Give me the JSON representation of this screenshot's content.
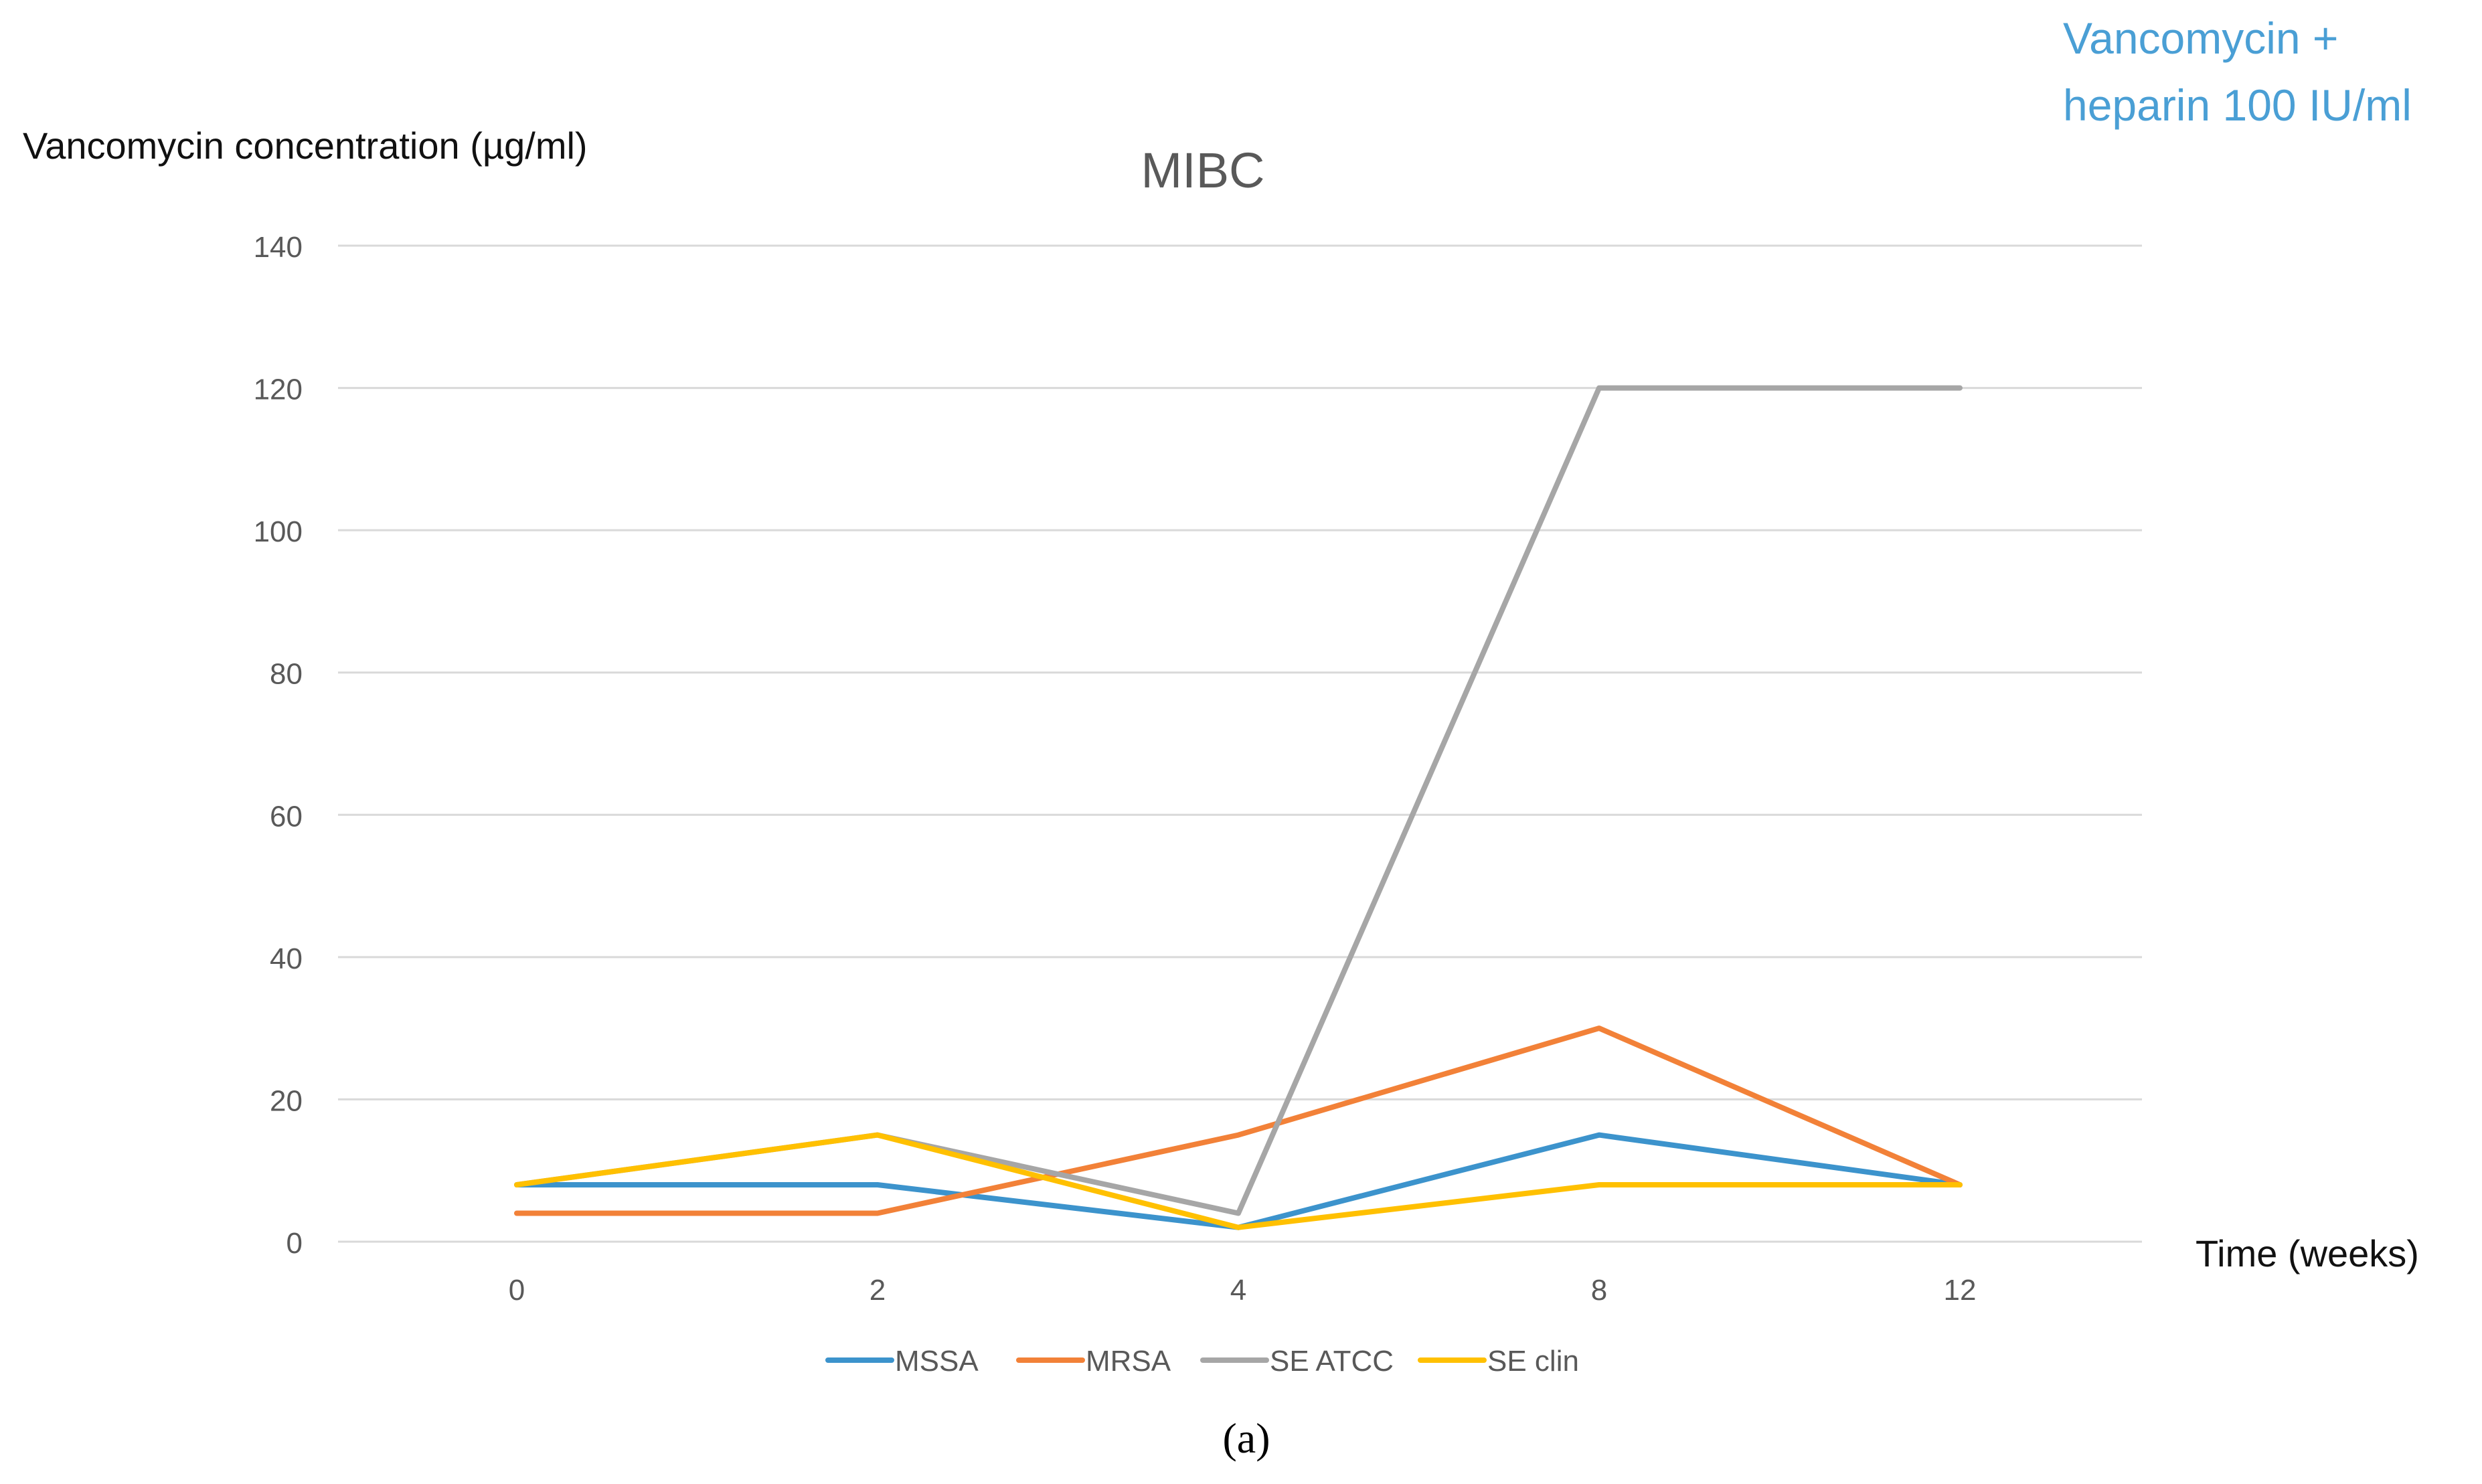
{
  "chart_data": {
    "type": "line",
    "title": "MIBC",
    "subtitle": "Vancomycin + heparin 100 IU/ml",
    "subtitle_lines": [
      "Vancomycin +",
      "heparin 100 IU/ml"
    ],
    "ylabel": "Vancomycin concentration (µg/ml)",
    "xlabel": "Time (weeks)",
    "panel_label": "(a)",
    "categories": [
      "0",
      "2",
      "4",
      "8",
      "12"
    ],
    "ylim": [
      0,
      140
    ],
    "yticks": [
      0,
      20,
      40,
      60,
      80,
      100,
      120,
      140
    ],
    "grid": true,
    "legend_position": "bottom",
    "series": [
      {
        "name": "MSSA",
        "color": "#3C93CC",
        "values": [
          8,
          8,
          2,
          15,
          8
        ]
      },
      {
        "name": "MRSA",
        "color": "#F28138",
        "values": [
          4,
          4,
          15,
          30,
          8
        ]
      },
      {
        "name": "SE ATCC",
        "color": "#A6A6A6",
        "values": [
          8,
          15,
          4,
          120,
          120
        ]
      },
      {
        "name": "SE clin",
        "color": "#FFC000",
        "values": [
          8,
          15,
          2,
          8,
          8
        ]
      }
    ],
    "subtitle_color": "#4A9FD5"
  }
}
